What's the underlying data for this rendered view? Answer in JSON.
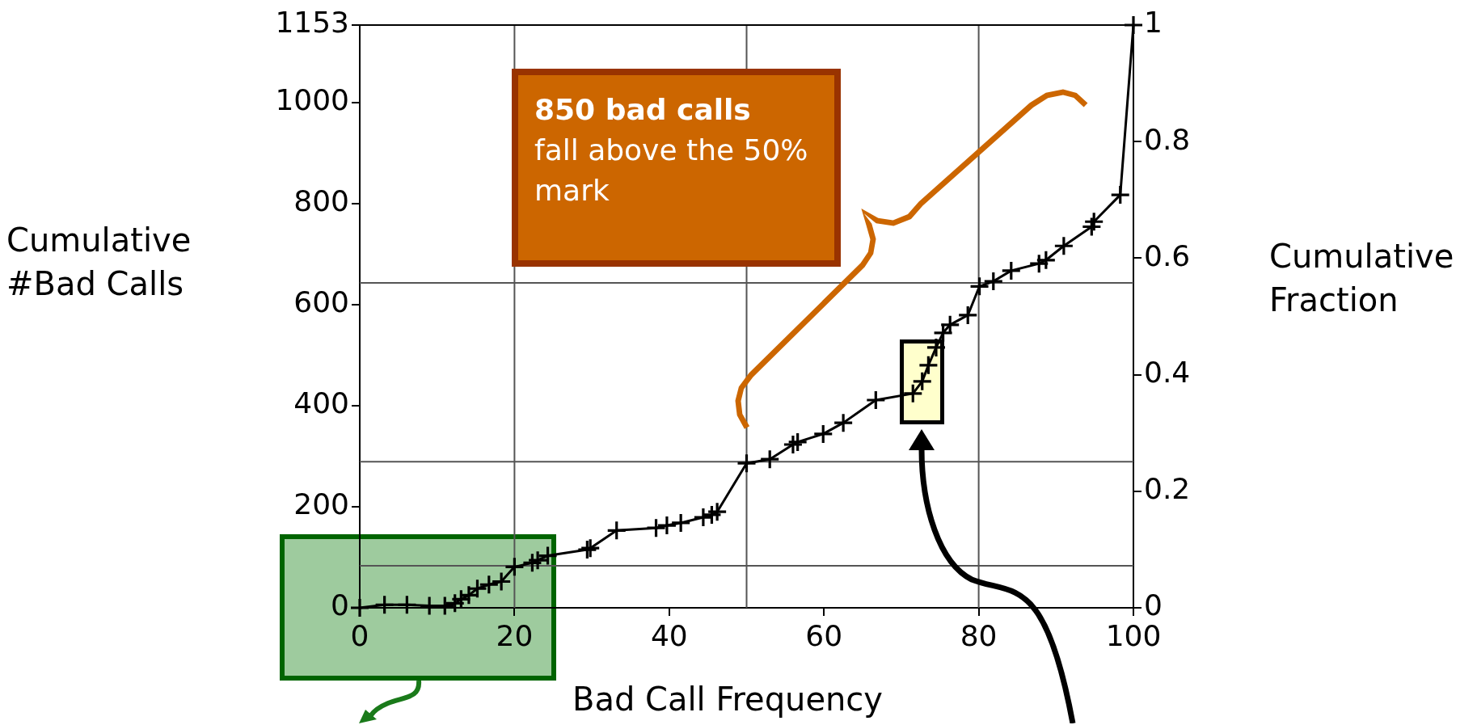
{
  "chart_data": {
    "type": "line",
    "xlabel": "Bad Call Frequency",
    "ylabel": "Cumulative #Bad Calls",
    "y2label": "Cumulative Fraction",
    "annotations": [
      "850 bad calls",
      "fall above the 50% mark"
    ],
    "series": [
      {
        "color": "#000000",
        "x": [
          0,
          3.2,
          6.1,
          9,
          11,
          12.3,
          13.1,
          14.1,
          15.2,
          16.7,
          18.3,
          20,
          22.3,
          23,
          24.3,
          29.4,
          29.8,
          33.2,
          38.3,
          39.7,
          41.5,
          44.4,
          45.5,
          46.2,
          50,
          53,
          56,
          56.6,
          59.9,
          62.5,
          66.7,
          71.5,
          72.7,
          73.5,
          74.5,
          75.4,
          76.3,
          78.6,
          80.1,
          81.9,
          84.2,
          87.8,
          88.7,
          91,
          94.6,
          94.9,
          98.3,
          100
        ],
        "values": [
          0,
          6,
          6,
          4,
          4,
          9,
          17,
          25,
          38,
          46,
          52,
          81,
          89,
          94,
          103,
          115,
          118,
          153,
          158,
          163,
          168,
          179,
          184,
          190,
          286,
          294,
          323,
          328,
          344,
          366,
          411,
          424,
          448,
          480,
          515,
          544,
          560,
          579,
          636,
          646,
          667,
          681,
          688,
          716,
          754,
          764,
          817,
          1153
        ]
      }
    ],
    "xlim": [
      0,
      100
    ],
    "xticks": [
      0,
      20,
      40,
      60,
      80,
      100
    ],
    "ylim": [
      0,
      1153
    ],
    "yticks": [
      0,
      200,
      400,
      600,
      800,
      1000,
      1153
    ],
    "y2lim": [
      0,
      1
    ],
    "y2ticks": [
      0,
      0.2,
      0.4,
      0.6,
      0.8,
      1
    ],
    "ref_lines": [
      {
        "axis": "y",
        "value": 83,
        "color": "#555555"
      },
      {
        "axis": "y",
        "value": 289,
        "color": "#555555"
      },
      {
        "axis": "y",
        "value": 643,
        "color": "#555555"
      },
      {
        "axis": "x",
        "value": 20,
        "color": "#555555"
      },
      {
        "axis": "x",
        "value": 50,
        "color": "#555555"
      },
      {
        "axis": "x",
        "value": 80,
        "color": "#555555"
      }
    ],
    "marker": "cross",
    "line_style": "solid",
    "grid": false,
    "legend": false
  }
}
